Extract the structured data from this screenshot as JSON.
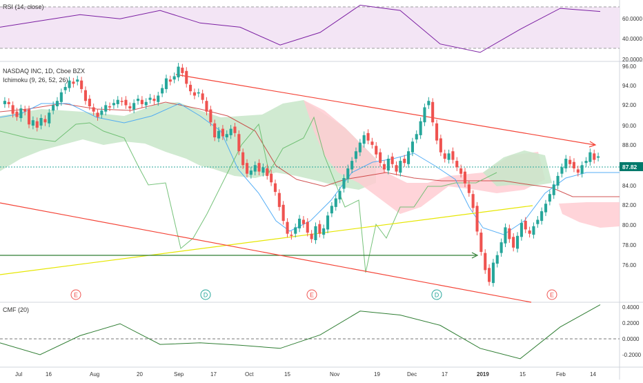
{
  "colors": {
    "up": "#26a69a",
    "down": "#ef5350",
    "rsi_line": "#7b1fa2",
    "rsi_band": "#f3e5f5",
    "cmf_line": "#2e7d32",
    "trend": "#f44336",
    "yellow": "#e6e600",
    "green_line": "#2e7d32",
    "cloud_up": "#c8e6c9",
    "cloud_down": "#ffcdd2",
    "tenkan": "#42a5f5",
    "kijun": "#b71c1c",
    "chikou": "#66bb6a",
    "price_label_bg": "#00796b"
  },
  "rsi_panel": {
    "title": "RSI (14, close)",
    "ticks": [
      "60.0000",
      "40.0000",
      "20.0000"
    ]
  },
  "main_panel": {
    "title": "NASDAQ INC, 1D, Cboe BZX",
    "indicator": "Ichimoku (9, 26, 52, 26)",
    "price_label": "87.82",
    "ticks": [
      "96.00",
      "94.00",
      "92.00",
      "90.00",
      "88.00",
      "86.00",
      "84.00",
      "82.00",
      "80.00",
      "78.00",
      "76.00"
    ],
    "events": [
      "E",
      "D",
      "E",
      "D",
      "E"
    ]
  },
  "cmf_panel": {
    "title": "CMF (20)",
    "ticks": [
      "0.4000",
      "0.2000",
      "0.0000",
      "-0.2000"
    ]
  },
  "x_axis": {
    "ticks": [
      "Jul",
      "16",
      "Aug",
      "20",
      "Sep",
      "17",
      "Oct",
      "15",
      "Nov",
      "19",
      "Dec",
      "17",
      "2019",
      "15",
      "Feb",
      "14"
    ]
  },
  "chart_data": [
    {
      "type": "line",
      "name": "rsi",
      "title": "RSI (14, close)",
      "ylim": [
        18,
        72
      ],
      "bands": [
        30,
        70
      ],
      "x": [
        "Jul 1",
        "Jul 16",
        "Aug 1",
        "Aug 20",
        "Sep 4",
        "Sep 17",
        "Oct 1",
        "Oct 15",
        "Nov 1",
        "Nov 19",
        "Dec 3",
        "Dec 17",
        "Jan 2",
        "Jan 15",
        "Feb 1",
        "Feb 14"
      ],
      "values": [
        50,
        56,
        62,
        58,
        66,
        54,
        50,
        33,
        45,
        71,
        66,
        34,
        26,
        48,
        68,
        65
      ]
    },
    {
      "type": "candlestick",
      "name": "price",
      "title": "NASDAQ INC, 1D, Cboe BZX",
      "ylim": [
        74.2,
        96.3
      ],
      "x_start": "Jun 25, 2018",
      "x_end": "Feb 20, 2019",
      "ohlc_closes": [
        93.0,
        92.7,
        91.8,
        91.5,
        92.3,
        92.0,
        90.8,
        91.2,
        90.5,
        91.4,
        91.0,
        91.9,
        92.6,
        93.0,
        93.8,
        94.3,
        94.9,
        94.6,
        95.0,
        94.1,
        93.0,
        92.5,
        92.0,
        91.5,
        92.1,
        92.6,
        92.4,
        92.8,
        93.1,
        92.9,
        92.6,
        92.3,
        92.8,
        93.2,
        92.7,
        92.9,
        93.3,
        93.0,
        93.5,
        94.2,
        95.1,
        94.8,
        95.3,
        96.2,
        95.6,
        94.6,
        93.9,
        93.5,
        93.8,
        93.1,
        92.0,
        91.0,
        89.6,
        90.2,
        89.7,
        89.9,
        90.4,
        90.0,
        88.3,
        87.0,
        86.2,
        86.5,
        87.0,
        86.4,
        86.8,
        86.0,
        85.4,
        84.5,
        83.1,
        81.8,
        80.6,
        80.4,
        81.2,
        82.0,
        81.5,
        80.7,
        80.1,
        81.3,
        80.6,
        81.1,
        82.3,
        83.2,
        83.9,
        84.6,
        85.8,
        86.7,
        87.4,
        88.3,
        89.1,
        89.8,
        89.3,
        88.9,
        88.0,
        87.2,
        86.6,
        87.6,
        87.1,
        86.4,
        87.4,
        87.2,
        88.3,
        89.2,
        89.9,
        91.1,
        92.4,
        93.0,
        91.0,
        89.3,
        88.2,
        87.6,
        88.1,
        87.5,
        86.8,
        86.2,
        85.3,
        84.4,
        83.0,
        80.8,
        78.9,
        77.2,
        76.1,
        77.9,
        78.6,
        79.8,
        81.2,
        80.1,
        79.3,
        80.4,
        81.6,
        81.0,
        80.6,
        81.3,
        81.9,
        82.7,
        83.4,
        84.3,
        85.2,
        86.0,
        86.8,
        87.6,
        87.1,
        86.7,
        86.3,
        87.0,
        87.4,
        88.2,
        87.5,
        87.82
      ]
    },
    {
      "type": "line",
      "name": "cmf",
      "title": "CMF (20)",
      "ylim": [
        -0.3,
        0.45
      ],
      "x": [
        "Jul 1",
        "Jul 16",
        "Aug 1",
        "Aug 20",
        "Sep 4",
        "Sep 17",
        "Oct 1",
        "Oct 15",
        "Nov 1",
        "Nov 19",
        "Dec 3",
        "Dec 17",
        "Jan 2",
        "Jan 15",
        "Feb 1",
        "Feb 14"
      ],
      "values": [
        -0.05,
        -0.2,
        0.04,
        0.19,
        -0.07,
        -0.05,
        -0.08,
        -0.12,
        0.05,
        0.35,
        0.3,
        0.17,
        -0.12,
        -0.25,
        0.15,
        0.43
      ]
    }
  ]
}
